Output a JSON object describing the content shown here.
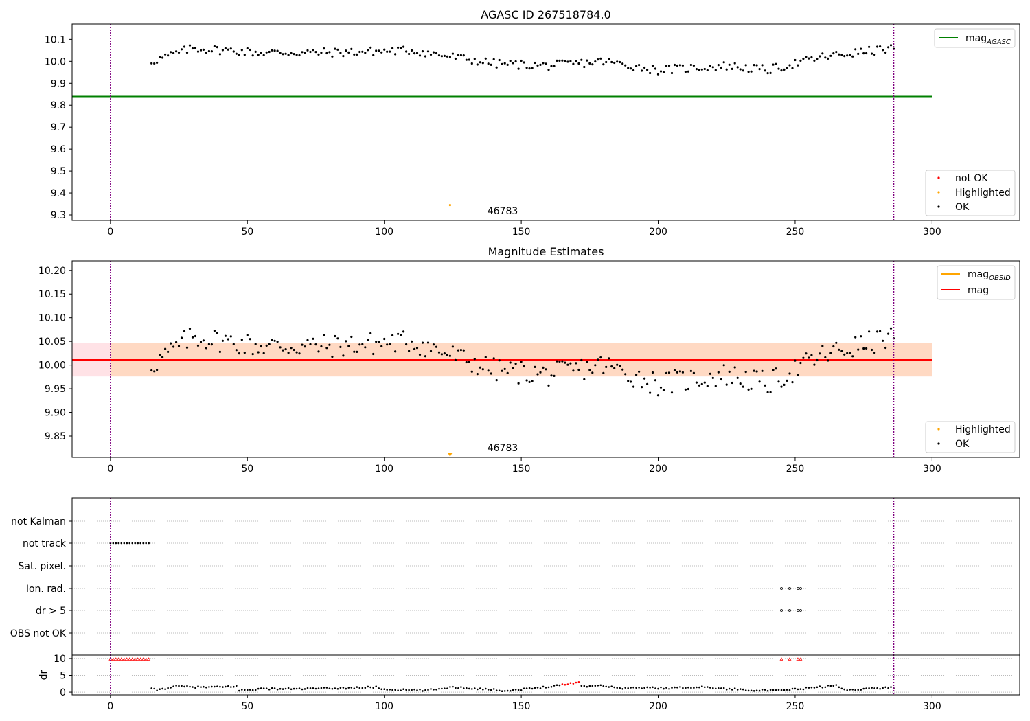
{
  "chart_data": [
    {
      "type": "scatter",
      "title": "AGASC ID 267518784.0",
      "xlim": [
        -14,
        332
      ],
      "ylim": [
        9.275,
        10.17
      ],
      "x_ticks": [
        "0",
        "50",
        "100",
        "150",
        "200",
        "250",
        "300"
      ],
      "x_tick_values": [
        0,
        50,
        100,
        150,
        200,
        250,
        300
      ],
      "y_ticks": [
        "9.3",
        "9.4",
        "9.5",
        "9.6",
        "9.7",
        "9.8",
        "9.9",
        "10.0",
        "10.1"
      ],
      "y_tick_values": [
        9.3,
        9.4,
        9.5,
        9.6,
        9.7,
        9.8,
        9.9,
        10.0,
        10.1
      ],
      "vlines": [
        0,
        286
      ],
      "hlines": [
        {
          "name": "mag_AGASC",
          "y": 9.84,
          "x_range": [
            -14,
            300
          ],
          "color": "#008000"
        }
      ],
      "highlighted_points": [
        {
          "x": 124,
          "y": 9.345
        }
      ],
      "annotation": {
        "text": "46783",
        "x": 137.5,
        "y": 9.285
      },
      "legend_top": {
        "label_main": "mag",
        "label_sub": "AGASC",
        "placement": "upper right"
      },
      "legend_bottom": {
        "labels": [
          "not OK",
          "Highlighted",
          "OK"
        ],
        "colors": [
          "#ff0000",
          "#ffa500",
          "#000000"
        ],
        "placement": "lower right"
      },
      "ok_series": {
        "x_start": 15,
        "x_end": 286,
        "base": 10.0,
        "noise": 0.02,
        "trend_x": [
          15,
          30,
          55,
          80,
          110,
          125,
          140,
          160,
          180,
          200,
          225,
          240,
          260,
          286
        ],
        "trend_y": [
          10.0,
          10.06,
          10.04,
          10.04,
          10.05,
          10.02,
          9.99,
          9.98,
          10.0,
          9.96,
          9.98,
          9.96,
          10.02,
          10.06
        ]
      }
    },
    {
      "type": "scatter",
      "title": "Magnitude Estimates",
      "xlim": [
        -14,
        332
      ],
      "ylim": [
        9.805,
        10.22
      ],
      "x_ticks": [
        "0",
        "50",
        "100",
        "150",
        "200",
        "250",
        "300"
      ],
      "x_tick_values": [
        0,
        50,
        100,
        150,
        200,
        250,
        300
      ],
      "y_ticks": [
        "9.85",
        "9.90",
        "9.95",
        "10.00",
        "10.05",
        "10.10",
        "10.15",
        "10.20"
      ],
      "y_tick_values": [
        9.85,
        9.9,
        9.95,
        10.0,
        10.05,
        10.1,
        10.15,
        10.2
      ],
      "vlines": [
        0,
        286
      ],
      "mag": {
        "value": 10.011,
        "band": [
          9.976,
          10.047
        ],
        "x_range": [
          -14,
          300
        ]
      },
      "highlighted_marker": {
        "x": 124,
        "y": 9.81
      },
      "annotation": {
        "text": "46783",
        "x": 137.5,
        "y": 9.81
      },
      "legend_top": {
        "labels": [
          {
            "main": "mag",
            "sub": "OBSID",
            "color": "#ffa500"
          },
          {
            "main": "mag",
            "sub": "",
            "color": "#ff0000"
          }
        ],
        "placement": "upper right"
      },
      "legend_bottom": {
        "labels": [
          "Highlighted",
          "OK"
        ],
        "colors": [
          "#ffa500",
          "#000000"
        ],
        "placement": "lower right"
      },
      "ok_series": {
        "x_start": 15,
        "x_end": 286,
        "noise": 0.025,
        "trend_x": [
          15,
          30,
          55,
          80,
          110,
          125,
          140,
          160,
          180,
          200,
          225,
          240,
          260,
          286
        ],
        "trend_y": [
          10.0,
          10.06,
          10.04,
          10.04,
          10.05,
          10.02,
          9.99,
          9.98,
          10.0,
          9.96,
          9.98,
          9.96,
          10.02,
          10.06
        ]
      }
    },
    {
      "type": "scatter",
      "title": "",
      "xlim": [
        -14,
        332
      ],
      "x_ticks": [
        "0",
        "50",
        "100",
        "150",
        "200",
        "250",
        "300"
      ],
      "x_tick_values": [
        0,
        50,
        100,
        150,
        200,
        250,
        300
      ],
      "flag_labels": [
        "not Kalman",
        "not track",
        "Sat. pixel.",
        "Ion. rad.",
        "dr > 5",
        "OBS not OK"
      ],
      "dr_label": "dr",
      "dr_ylim": [
        -0.8,
        11.0
      ],
      "dr_ticks": [
        "0",
        "5",
        "10"
      ],
      "dr_tick_values": [
        0,
        5,
        10
      ],
      "vlines": [
        0,
        286
      ],
      "not_track_x_range": [
        0,
        14
      ],
      "ion_rad_x": [
        245,
        248,
        251,
        252
      ],
      "dr_gt5_x": [
        245,
        248,
        251,
        252
      ],
      "dr_red_x_ranges": [
        [
          0,
          14
        ],
        [
          245,
          245
        ],
        [
          248,
          248
        ],
        [
          251,
          252
        ]
      ],
      "dr_red_value": 9.8,
      "dr_profile_x": [
        15,
        17,
        22,
        25,
        30,
        40,
        46,
        47,
        55,
        70,
        85,
        97,
        100,
        115,
        125,
        135,
        145,
        155,
        165,
        171,
        172,
        180,
        185,
        195,
        205,
        215,
        225,
        235,
        243,
        246,
        252,
        265,
        268,
        275,
        286
      ],
      "dr_profile_y": [
        1.0,
        0.6,
        1.5,
        1.8,
        1.5,
        1.5,
        1.8,
        0.5,
        1.0,
        1.0,
        1.2,
        1.5,
        0.8,
        0.5,
        1.5,
        1.0,
        0.4,
        1.2,
        2.2,
        3.0,
        1.8,
        2.0,
        1.2,
        1.3,
        1.2,
        1.6,
        1.0,
        0.6,
        0.4,
        0.6,
        1.0,
        2.0,
        0.6,
        1.0,
        1.4
      ]
    }
  ]
}
